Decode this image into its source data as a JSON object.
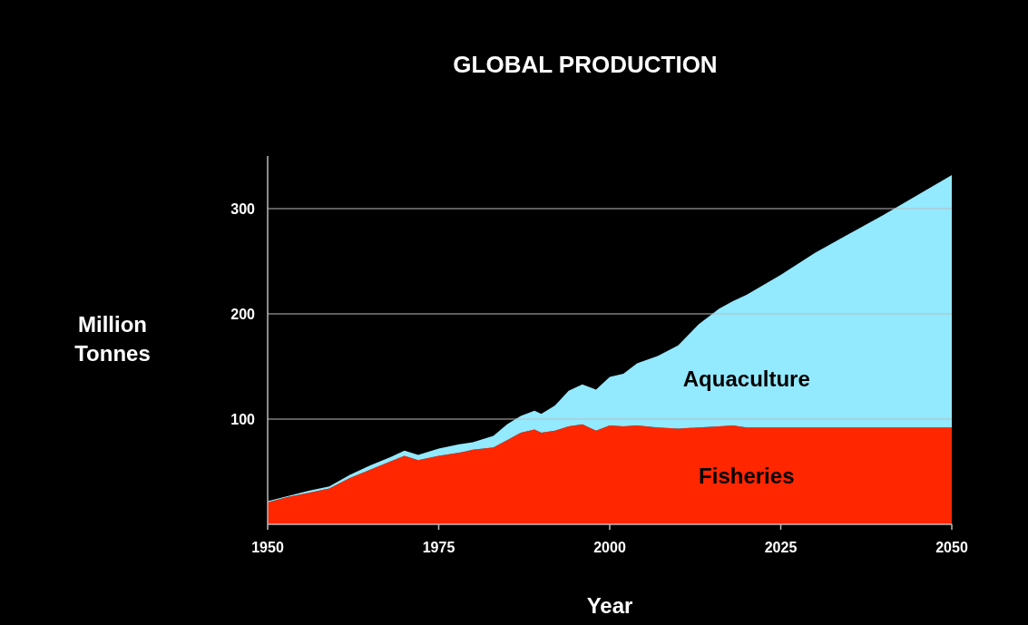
{
  "chart_data": {
    "type": "area",
    "title": "GLOBAL PRODUCTION",
    "xlabel": "Year",
    "ylabel": "Million Tonnes",
    "stacked": true,
    "x": [
      1950,
      1953,
      1956,
      1959,
      1962,
      1965,
      1968,
      1970,
      1972,
      1975,
      1978,
      1980,
      1983,
      1985,
      1987,
      1989,
      1990,
      1992,
      1994,
      1996,
      1998,
      2000,
      2002,
      2004,
      2007,
      2010,
      2013,
      2016,
      2018,
      2020,
      2025,
      2030,
      2035,
      2040,
      2045,
      2050
    ],
    "series": [
      {
        "name": "Fisheries",
        "color": "#ff2600",
        "values": [
          21,
          26,
          30,
          34,
          44,
          52,
          60,
          65,
          61,
          65,
          68,
          71,
          73,
          80,
          87,
          90,
          87,
          89,
          93,
          95,
          89,
          94,
          93,
          94,
          92,
          91,
          92,
          93,
          94,
          92,
          92,
          92,
          92,
          92,
          92,
          92
        ]
      },
      {
        "name": "Aquaculture",
        "color": "#93e9fe",
        "values": [
          1,
          1,
          2,
          2,
          3,
          4,
          4,
          5,
          5,
          7,
          8,
          7,
          11,
          15,
          16,
          18,
          18,
          24,
          34,
          38,
          39,
          46,
          50,
          59,
          68,
          79,
          98,
          112,
          118,
          126,
          145,
          166,
          184,
          202,
          221,
          240
        ]
      }
    ],
    "xlim": [
      1950,
      2050
    ],
    "xticks": [
      1950,
      1975,
      2000,
      2025,
      2050
    ],
    "ylim": [
      0,
      350
    ],
    "yticks": [
      100,
      200,
      300
    ],
    "grid": "y",
    "legend": false
  }
}
